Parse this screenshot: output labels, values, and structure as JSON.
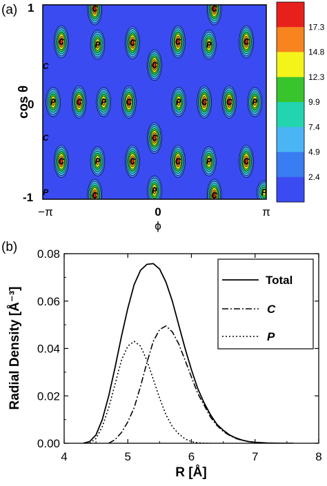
{
  "chart_data": [
    {
      "type": "heatmap",
      "panel_label": "(a)",
      "xlabel": "ϕ",
      "ylabel": "cos θ",
      "x_ticks": [
        {
          "value": -3.14159,
          "label": "−π"
        },
        {
          "value": 0,
          "label": "0"
        },
        {
          "value": 3.14159,
          "label": "π"
        }
      ],
      "y_ticks": [
        {
          "value": 1,
          "label": "1"
        },
        {
          "value": 0,
          "label": "0"
        },
        {
          "value": -1,
          "label": "-1"
        }
      ],
      "xlim": [
        -3.14159,
        3.14159
      ],
      "ylim": [
        -1,
        1
      ],
      "colorbar": {
        "labels": [
          "17.3",
          "14.8",
          "12.3",
          "9.9",
          "7.4",
          "4.9",
          "2.4"
        ],
        "levels": [
          17.3,
          14.8,
          12.3,
          9.9,
          7.4,
          4.9,
          2.4
        ],
        "colors": [
          "#e8201c",
          "#f7841f",
          "#f4f41a",
          "#39c42e",
          "#22d4b0",
          "#4ab5f4",
          "#3a7cf2",
          "#3b4bf2"
        ]
      },
      "peaks": [
        {
          "x": -1.68,
          "y": 0.96,
          "label": "C",
          "amp": 1.0
        },
        {
          "x": 1.68,
          "y": 0.96,
          "label": "C",
          "amp": 1.0
        },
        {
          "x": -2.62,
          "y": 0.62,
          "label": "C",
          "amp": 1.0
        },
        {
          "x": -1.6,
          "y": 0.59,
          "label": "P",
          "amp": 0.9
        },
        {
          "x": -0.62,
          "y": 0.61,
          "label": "C",
          "amp": 1.0
        },
        {
          "x": 0.66,
          "y": 0.62,
          "label": "C",
          "amp": 1.0
        },
        {
          "x": 1.53,
          "y": 0.59,
          "label": "P",
          "amp": 0.9
        },
        {
          "x": 2.58,
          "y": 0.62,
          "label": "C",
          "amp": 1.0
        },
        {
          "x": 0.0,
          "y": 0.38,
          "label": "C",
          "amp": 0.95
        },
        {
          "x": -3.06,
          "y": 0.37,
          "label": "C",
          "amp": 0.0
        },
        {
          "x": -2.85,
          "y": 0.0,
          "label": "P",
          "amp": 0.9
        },
        {
          "x": -2.12,
          "y": 0.0,
          "label": "C",
          "amp": 1.0
        },
        {
          "x": -1.43,
          "y": 0.0,
          "label": "P",
          "amp": 0.9
        },
        {
          "x": -0.72,
          "y": 0.0,
          "label": "C",
          "amp": 1.0
        },
        {
          "x": 0.68,
          "y": 0.0,
          "label": "P",
          "amp": 0.9
        },
        {
          "x": 1.4,
          "y": 0.0,
          "label": "C",
          "amp": 1.0
        },
        {
          "x": 2.1,
          "y": 0.0,
          "label": "C",
          "amp": 1.0
        },
        {
          "x": 2.82,
          "y": 0.0,
          "label": "P",
          "amp": 0.9
        },
        {
          "x": 0.0,
          "y": -0.37,
          "label": "C",
          "amp": 0.95
        },
        {
          "x": -3.06,
          "y": -0.37,
          "label": "C",
          "amp": 0.0
        },
        {
          "x": -2.62,
          "y": -0.61,
          "label": "C",
          "amp": 1.0
        },
        {
          "x": -1.6,
          "y": -0.61,
          "label": "P",
          "amp": 0.9
        },
        {
          "x": -0.62,
          "y": -0.61,
          "label": "C",
          "amp": 1.0
        },
        {
          "x": 0.66,
          "y": -0.61,
          "label": "C",
          "amp": 1.0
        },
        {
          "x": 1.53,
          "y": -0.61,
          "label": "P",
          "amp": 0.9
        },
        {
          "x": 2.58,
          "y": -0.61,
          "label": "C",
          "amp": 1.0
        },
        {
          "x": -3.06,
          "y": -0.93,
          "label": "P",
          "amp": 0.0
        },
        {
          "x": -1.68,
          "y": -0.96,
          "label": "C",
          "amp": 1.0
        },
        {
          "x": 0.0,
          "y": -0.91,
          "label": "P",
          "amp": 0.9
        },
        {
          "x": 1.68,
          "y": -0.96,
          "label": "C",
          "amp": 1.0
        },
        {
          "x": 3.08,
          "y": -0.93,
          "label": "P",
          "amp": 0.7
        }
      ]
    },
    {
      "type": "line",
      "panel_label": "(b)",
      "xlabel": "R [Å]",
      "ylabel": "Radial Density [Å⁻³]",
      "xlim": [
        4,
        8
      ],
      "ylim": [
        0,
        0.08
      ],
      "x_ticks": [
        4,
        5,
        6,
        7,
        8
      ],
      "y_ticks": [
        "0.00",
        "0.02",
        "0.04",
        "0.06",
        "0.08"
      ],
      "legend_position": "top-right",
      "series": [
        {
          "name": "Total",
          "style": "solid",
          "x": [
            4.3,
            4.4,
            4.5,
            4.6,
            4.7,
            4.8,
            4.9,
            5.0,
            5.1,
            5.2,
            5.3,
            5.4,
            5.5,
            5.6,
            5.7,
            5.8,
            5.9,
            6.0,
            6.1,
            6.2,
            6.3,
            6.4,
            6.5,
            6.6,
            6.7,
            6.8,
            6.9,
            7.0,
            7.2,
            7.4,
            7.6
          ],
          "y": [
            0.0,
            0.0007,
            0.0035,
            0.01,
            0.02,
            0.032,
            0.045,
            0.057,
            0.067,
            0.073,
            0.0755,
            0.0758,
            0.0735,
            0.068,
            0.06,
            0.05,
            0.04,
            0.031,
            0.023,
            0.017,
            0.012,
            0.008,
            0.0055,
            0.0035,
            0.0022,
            0.0013,
            0.0007,
            0.0004,
            0.0001,
            0.0,
            0.0
          ]
        },
        {
          "name": "C",
          "style": "dash-dot",
          "x": [
            4.7,
            4.8,
            4.9,
            5.0,
            5.1,
            5.2,
            5.3,
            5.4,
            5.5,
            5.6,
            5.7,
            5.8,
            5.9,
            6.0,
            6.1,
            6.2,
            6.3,
            6.4,
            6.5,
            6.6,
            6.7,
            6.8,
            6.9,
            7.0,
            7.2
          ],
          "y": [
            0.0,
            0.0015,
            0.0045,
            0.009,
            0.015,
            0.024,
            0.034,
            0.043,
            0.048,
            0.0495,
            0.047,
            0.042,
            0.035,
            0.028,
            0.021,
            0.016,
            0.011,
            0.0075,
            0.005,
            0.0033,
            0.002,
            0.0012,
            0.0007,
            0.0004,
            0.0
          ]
        },
        {
          "name": "P",
          "style": "dotted",
          "x": [
            4.4,
            4.5,
            4.6,
            4.7,
            4.8,
            4.9,
            5.0,
            5.1,
            5.2,
            5.3,
            5.4,
            5.5,
            5.6,
            5.7,
            5.8,
            5.9,
            6.0,
            6.1,
            6.2,
            6.3
          ],
          "y": [
            0.0,
            0.002,
            0.007,
            0.015,
            0.025,
            0.035,
            0.041,
            0.043,
            0.041,
            0.035,
            0.027,
            0.019,
            0.012,
            0.007,
            0.004,
            0.0018,
            0.0007,
            0.0002,
            0.0,
            0.0
          ]
        }
      ]
    }
  ]
}
